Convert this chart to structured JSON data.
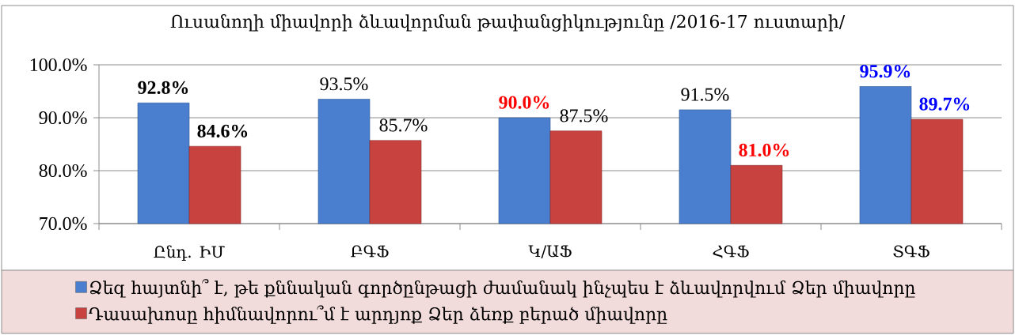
{
  "chart_data": {
    "type": "bar",
    "title": "Ուսանողի միավորի ձևավորման թափանցիկությունը /2016-17 ուստարի/",
    "categories": [
      "Ընդ. ԻՄ",
      "ԲԳՖ",
      "Կ/ԱՖ",
      "ՀԳՖ",
      "ՏԳՖ"
    ],
    "series": [
      {
        "name": "Ձեզ հայտնի՞ է, թե  քննական գործընթացի ժամանակ  ինչպես է ձևավորվում Ձեր միավորը",
        "color": "#4a7fd0",
        "values": [
          92.8,
          93.5,
          90.0,
          91.5,
          95.9
        ],
        "value_labels": [
          "92.8%",
          "93.5%",
          "90.0%",
          "91.5%",
          "95.9%"
        ]
      },
      {
        "name": "Դասախոսը հիմնավորու՞մ է արդյոք Ձեր ձեռք բերած միավորը",
        "color": "#c8423f",
        "values": [
          84.6,
          85.7,
          87.5,
          81.0,
          89.7
        ],
        "value_labels": [
          "84.6%",
          "85.7%",
          "87.5%",
          "81.0%",
          "89.7%"
        ]
      }
    ],
    "ylim": [
      70,
      100
    ],
    "yticks": [
      {
        "value": 70,
        "label": "70.0%"
      },
      {
        "value": 80,
        "label": "80.0%"
      },
      {
        "value": 90,
        "label": "90.0%"
      },
      {
        "value": 100,
        "label": "100.0%"
      }
    ],
    "grid": "y",
    "legend": "bottom"
  }
}
